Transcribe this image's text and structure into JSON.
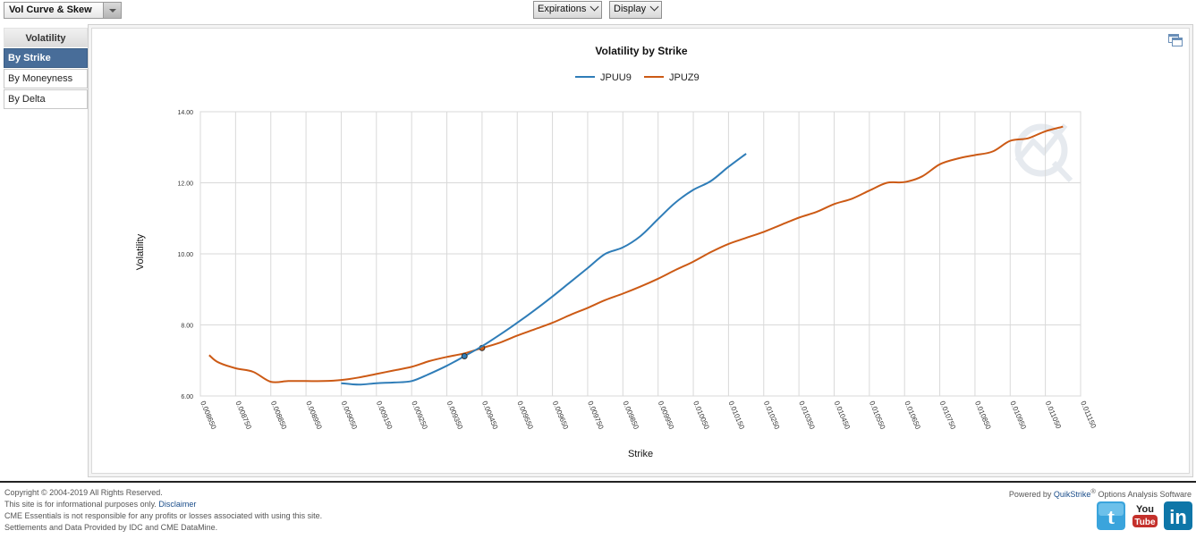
{
  "toolbar": {
    "view_select": "Vol Curve & Skew",
    "expirations_label": "Expirations",
    "display_label": "Display"
  },
  "sidebar": {
    "header": "Volatility",
    "items": [
      {
        "label": "By Strike",
        "active": true
      },
      {
        "label": "By Moneyness",
        "active": false
      },
      {
        "label": "By Delta",
        "active": false
      }
    ]
  },
  "colors": {
    "JPUU9": "#2f7db8",
    "JPUZ9": "#cc5a15",
    "accent": "#486d99"
  },
  "chart_data": {
    "type": "line",
    "title": "Volatility by Strike",
    "xlabel": "Strike",
    "ylabel": "Volatility",
    "xlim": [
      0.00865,
      0.01115
    ],
    "ylim": [
      6.0,
      14.0
    ],
    "x_ticks": [
      "0.008650",
      "0.008750",
      "0.008850",
      "0.008950",
      "0.009050",
      "0.009150",
      "0.009250",
      "0.009350",
      "0.009450",
      "0.009550",
      "0.009650",
      "0.009750",
      "0.009850",
      "0.009950",
      "0.010050",
      "0.010150",
      "0.010250",
      "0.010350",
      "0.010450",
      "0.010550",
      "0.010650",
      "0.010750",
      "0.010850",
      "0.010950",
      "0.011050",
      "0.011150"
    ],
    "y_ticks": [
      "6.00",
      "8.00",
      "10.00",
      "12.00",
      "14.00"
    ],
    "legend_position": "top-center",
    "grid": true,
    "series": [
      {
        "name": "JPUU9",
        "x": [
          0.00905,
          0.0091,
          0.00915,
          0.0092,
          0.00925,
          0.0093,
          0.00935,
          0.0094,
          0.00945,
          0.0095,
          0.00955,
          0.0096,
          0.00965,
          0.0097,
          0.00975,
          0.0098,
          0.00985,
          0.0099,
          0.00995,
          0.01,
          0.01005,
          0.0101,
          0.01015,
          0.0102
        ],
        "values": [
          6.36,
          6.32,
          6.36,
          6.38,
          6.42,
          6.62,
          6.85,
          7.12,
          7.4,
          7.72,
          8.06,
          8.42,
          8.8,
          9.2,
          9.6,
          10.0,
          10.18,
          10.5,
          10.98,
          11.45,
          11.8,
          12.05,
          12.45,
          12.82
        ],
        "markers_at": [
          0.0094
        ]
      },
      {
        "name": "JPUZ9",
        "x": [
          0.008675,
          0.0087,
          0.00875,
          0.0088,
          0.00885,
          0.0089,
          0.00895,
          0.009,
          0.00905,
          0.0091,
          0.00915,
          0.0092,
          0.00925,
          0.0093,
          0.00935,
          0.0094,
          0.00945,
          0.0095,
          0.00955,
          0.0096,
          0.00965,
          0.0097,
          0.00975,
          0.0098,
          0.00985,
          0.0099,
          0.00995,
          0.01,
          0.01005,
          0.0101,
          0.01015,
          0.0102,
          0.01025,
          0.0103,
          0.01035,
          0.0104,
          0.01045,
          0.0105,
          0.01055,
          0.0106,
          0.01065,
          0.0107,
          0.01075,
          0.0108,
          0.01085,
          0.0109,
          0.01095,
          0.011,
          0.01105,
          0.0111
        ],
        "values": [
          7.15,
          6.95,
          6.78,
          6.68,
          6.4,
          6.42,
          6.42,
          6.42,
          6.45,
          6.52,
          6.62,
          6.72,
          6.82,
          6.98,
          7.1,
          7.2,
          7.35,
          7.5,
          7.7,
          7.88,
          8.06,
          8.28,
          8.48,
          8.7,
          8.88,
          9.08,
          9.3,
          9.55,
          9.78,
          10.05,
          10.28,
          10.45,
          10.62,
          10.82,
          11.02,
          11.18,
          11.4,
          11.55,
          11.78,
          12.0,
          12.02,
          12.18,
          12.52,
          12.68,
          12.78,
          12.88,
          13.18,
          13.25,
          13.45,
          13.58
        ],
        "markers_at": [
          0.00945
        ]
      }
    ]
  },
  "footer": {
    "copyright": "Copyright © 2004-2019 All Rights Reserved.",
    "info_prefix": "This site is for informational purposes only. ",
    "disclaimer_link": "Disclaimer",
    "liability": "CME Essentials is not responsible for any profits or losses associated with using this site.",
    "settlements": "Settlements and Data Provided by IDC and CME DataMine.",
    "powered_prefix": "Powered by ",
    "powered_brand": "QuikStrike",
    "powered_reg": "®",
    "powered_suffix": " Options Analysis Software"
  },
  "social": [
    {
      "name": "twitter-icon",
      "text": "t",
      "color": "#3aa4dc"
    },
    {
      "name": "youtube-icon",
      "text": "You Tube",
      "color": "#c4302b"
    },
    {
      "name": "linkedin-icon",
      "text": "in",
      "color": "#0e76a8"
    }
  ]
}
